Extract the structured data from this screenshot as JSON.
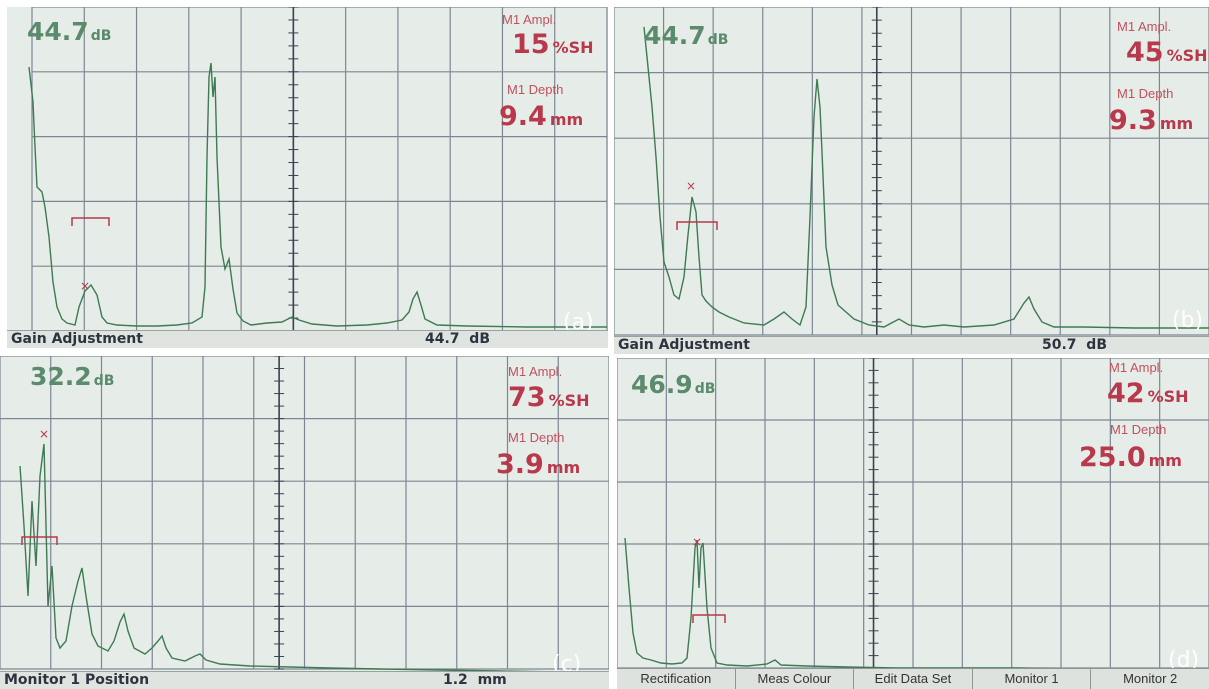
{
  "panels": {
    "a": {
      "gain": "44.7",
      "gain_unit": "dB",
      "ampl_label": "M1 Ampl.",
      "ampl_value": "15",
      "ampl_unit": "%SH",
      "depth_label": "M1 Depth",
      "depth_value": "9.4",
      "depth_unit": "mm",
      "status_left": "Gain Adjustment",
      "status_value": "44.7",
      "status_unit": "dB",
      "tag": "(a)"
    },
    "b": {
      "gain": "44.7",
      "gain_unit": "dB",
      "ampl_label": "M1 Ampl.",
      "ampl_value": "45",
      "ampl_unit": "%SH",
      "depth_label": "M1 Depth",
      "depth_value": "9.3",
      "depth_unit": "mm",
      "status_left": "Gain Adjustment",
      "status_value": "50.7",
      "status_unit": "dB",
      "tag": "(b)"
    },
    "c": {
      "gain": "32.2",
      "gain_unit": "dB",
      "ampl_label": "M1 Ampl.",
      "ampl_value": "73",
      "ampl_unit": "%SH",
      "depth_label": "M1 Depth",
      "depth_value": "3.9",
      "depth_unit": "mm",
      "status_left": "Monitor 1 Position",
      "status_value": "1.2",
      "status_unit": "mm",
      "tag": "(c)"
    },
    "d": {
      "gain": "46.9",
      "gain_unit": "dB",
      "ampl_label": "M1 Ampl.",
      "ampl_value": "42",
      "ampl_unit": "%SH",
      "depth_label": "M1 Depth",
      "depth_value": "25.0",
      "depth_unit": "mm",
      "menu": [
        "Rectification",
        "Meas Colour",
        "Edit Data Set",
        "Monitor 1",
        "Monitor 2"
      ],
      "tag": "(d)"
    }
  },
  "colors": {
    "trace": "#3e7a52",
    "gate": "#b8394b",
    "grid": "#7d8794",
    "screen": "#e6ece8"
  }
}
